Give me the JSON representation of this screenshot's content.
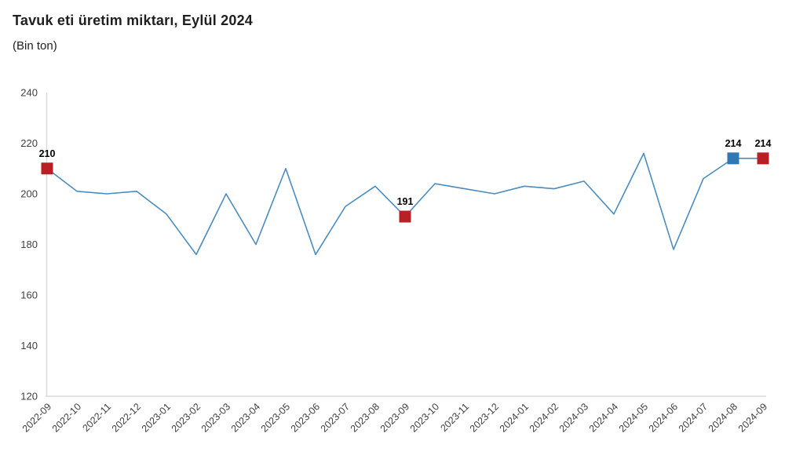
{
  "chart_data": {
    "type": "line",
    "title": "Tavuk eti üretim miktarı, Eylül 2024",
    "subtitle": "(Bin ton)",
    "xlabel": "",
    "ylabel": "",
    "ylim": [
      120,
      240
    ],
    "yticks": [
      240,
      220,
      200,
      180,
      160,
      140,
      120
    ],
    "grid": false,
    "legend": "none",
    "categories": [
      "2022-09",
      "2022-10",
      "2022-11",
      "2022-12",
      "2023-01",
      "2023-02",
      "2023-03",
      "2023-04",
      "2023-05",
      "2023-06",
      "2023-07",
      "2023-08",
      "2023-09",
      "2023-10",
      "2023-11",
      "2023-12",
      "2024-01",
      "2024-02",
      "2024-03",
      "2024-04",
      "2024-05",
      "2024-06",
      "2024-07",
      "2024-08",
      "2024-09"
    ],
    "values": [
      210,
      201,
      200,
      201,
      192,
      176,
      200,
      180,
      210,
      176,
      195,
      203,
      191,
      204,
      202,
      200,
      203,
      202,
      205,
      192,
      216,
      178,
      206,
      214,
      214
    ],
    "markers": [
      {
        "category": "2022-09",
        "index": 0,
        "value": 210,
        "label": "210",
        "color": "#B92026"
      },
      {
        "category": "2023-09",
        "index": 12,
        "value": 191,
        "label": "191",
        "color": "#B92026"
      },
      {
        "category": "2024-08",
        "index": 23,
        "value": 214,
        "label": "214",
        "color": "#3078B4"
      },
      {
        "category": "2024-09",
        "index": 24,
        "value": 214,
        "label": "214",
        "color": "#B92026"
      }
    ],
    "colors": {
      "line": "#4C8CBE",
      "axis": "#D9D9D9",
      "tick_labels": "#404040",
      "data_labels": "#000000",
      "marker_current": "#B92026",
      "marker_previous": "#3078B4"
    }
  }
}
